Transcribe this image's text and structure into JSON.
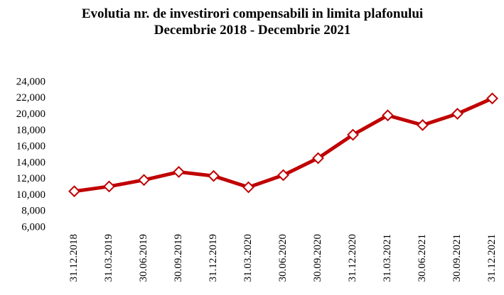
{
  "chart_data": {
    "type": "line",
    "title": "Evolutia nr. de investirori compensabili in limita plafonului",
    "subtitle": "Decembrie 2018 - Decembrie 2021",
    "categories": [
      "31.12.2018",
      "31.03.2019",
      "30.06.2019",
      "30.09.2019",
      "31.12.2019",
      "31.03.2020",
      "30.06.2020",
      "30.09.2020",
      "31.12.2020",
      "31.03.2021",
      "30.06.2021",
      "30.09.2021",
      "31.12.2021"
    ],
    "values": [
      10500,
      11100,
      11900,
      12900,
      12400,
      11000,
      12500,
      14600,
      17500,
      19900,
      18700,
      20100,
      22000
    ],
    "color": "#c00000",
    "ylim": [
      6000,
      24000
    ],
    "yticks": [
      {
        "value": 6000,
        "label": "6,000"
      },
      {
        "value": 8000,
        "label": "8,000"
      },
      {
        "value": 10000,
        "label": "10,000"
      },
      {
        "value": 12000,
        "label": "12,000"
      },
      {
        "value": 14000,
        "label": "14,000"
      },
      {
        "value": 16000,
        "label": "16,000"
      },
      {
        "value": 18000,
        "label": "18,000"
      },
      {
        "value": 20000,
        "label": "20,000"
      },
      {
        "value": 22000,
        "label": "22,000"
      },
      {
        "value": 24000,
        "label": "24,000"
      }
    ],
    "grid": false
  }
}
